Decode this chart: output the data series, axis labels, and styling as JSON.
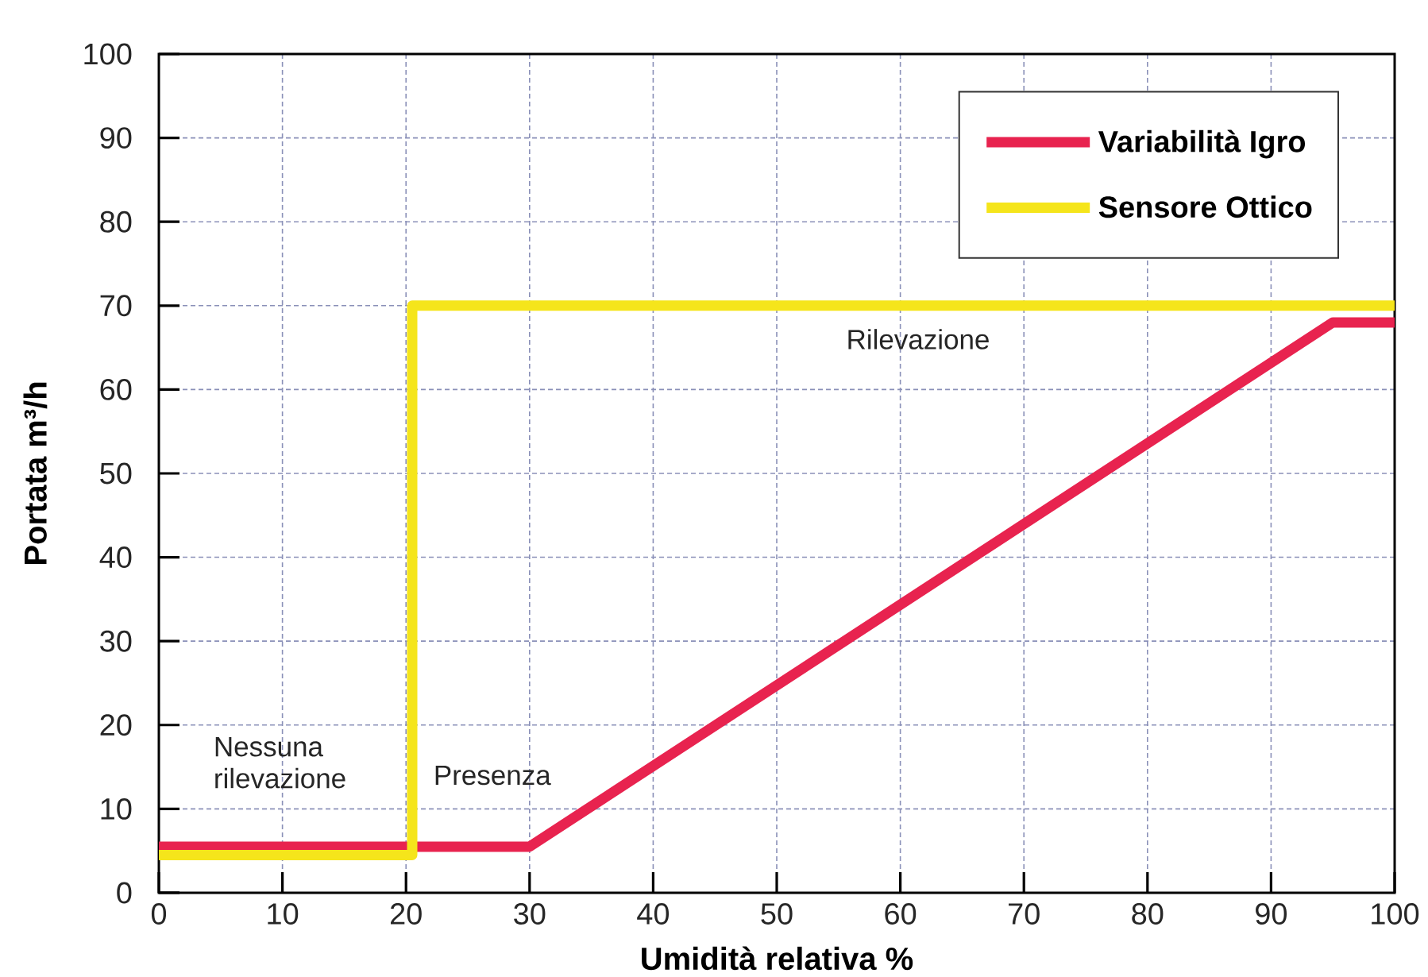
{
  "chart_data": {
    "type": "line",
    "xlabel": "Umidità relativa %",
    "ylabel": "Portata m³/h",
    "xlim": [
      0,
      100
    ],
    "ylim": [
      0,
      100
    ],
    "xticks": [
      0,
      10,
      20,
      30,
      40,
      50,
      60,
      70,
      80,
      90,
      100
    ],
    "yticks": [
      0,
      10,
      20,
      30,
      40,
      50,
      60,
      70,
      80,
      90,
      100
    ],
    "grid": true,
    "legend": "top right",
    "marker": "none",
    "line_style": "solid",
    "series": [
      {
        "name": "Variabilità Igro",
        "color": "#e8234f",
        "x": [
          0,
          30,
          95,
          100
        ],
        "values": [
          5.5,
          5.5,
          68,
          68
        ]
      },
      {
        "name": "Sensore Ottico",
        "color": "#f5e51b",
        "x": [
          0,
          20.5,
          20.5,
          100
        ],
        "values": [
          4.5,
          4.5,
          70,
          70
        ]
      }
    ],
    "annotations": [
      "Nessuna rilevazione",
      "Presenza",
      "Rilevazione"
    ]
  }
}
